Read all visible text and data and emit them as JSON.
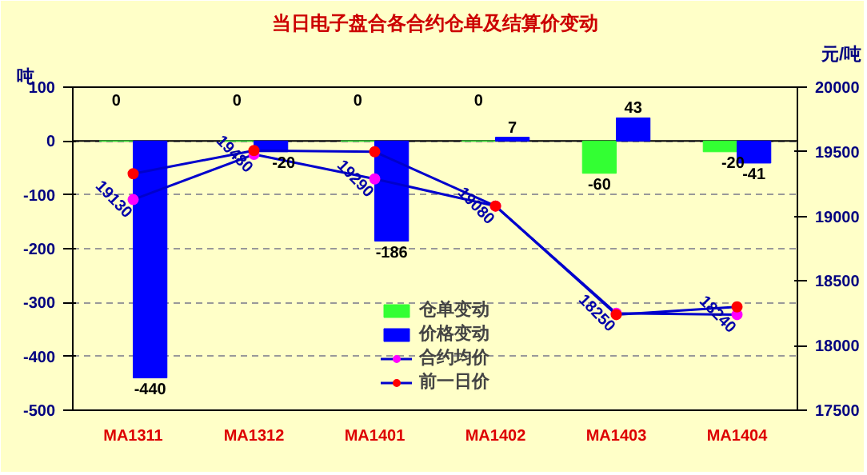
{
  "chart_data": {
    "type": "bar",
    "title": "当日电子盘合各合约仓单及结算价变动",
    "ylabel": "吨",
    "y2label": "元/吨",
    "categories": [
      "MA1311",
      "MA1312",
      "MA1401",
      "MA1402",
      "MA1403",
      "MA1404"
    ],
    "series": [
      {
        "name": "仓单变动",
        "color": "#33ff33",
        "values": [
          0,
          0,
          0,
          0,
          -60,
          -20
        ],
        "value_labels": [
          "0",
          "0",
          "0",
          "0",
          "-60",
          "-20"
        ]
      },
      {
        "name": "价格变动",
        "color": "#0000ff",
        "values": [
          -440,
          -20,
          -186,
          7,
          43,
          -41
        ],
        "value_labels": [
          "-440",
          "-20",
          "-186",
          "7",
          "43",
          "-41"
        ]
      },
      {
        "name": "合约均价",
        "type": "line",
        "axis": "y2",
        "color": "#ff00ff",
        "values": [
          19130,
          19480,
          19290,
          19080,
          18250,
          18240
        ],
        "value_labels": [
          "19130",
          "19480",
          "19290",
          "19080",
          "18250",
          "18240"
        ]
      },
      {
        "name": "前一日价",
        "type": "line",
        "axis": "y2",
        "color": "#ff0000",
        "values": [
          19330,
          19510,
          19500,
          19080,
          18240,
          18300
        ]
      }
    ],
    "ylim": [
      -500,
      100
    ],
    "yticks": [
      -500,
      -400,
      -300,
      -200,
      -100,
      0,
      100
    ],
    "y2lim": [
      17500,
      20000
    ],
    "y2ticks": [
      17500,
      18000,
      18500,
      19000,
      19500,
      20000
    ],
    "grid": "y",
    "legend": "bottom",
    "marker": "circle"
  }
}
